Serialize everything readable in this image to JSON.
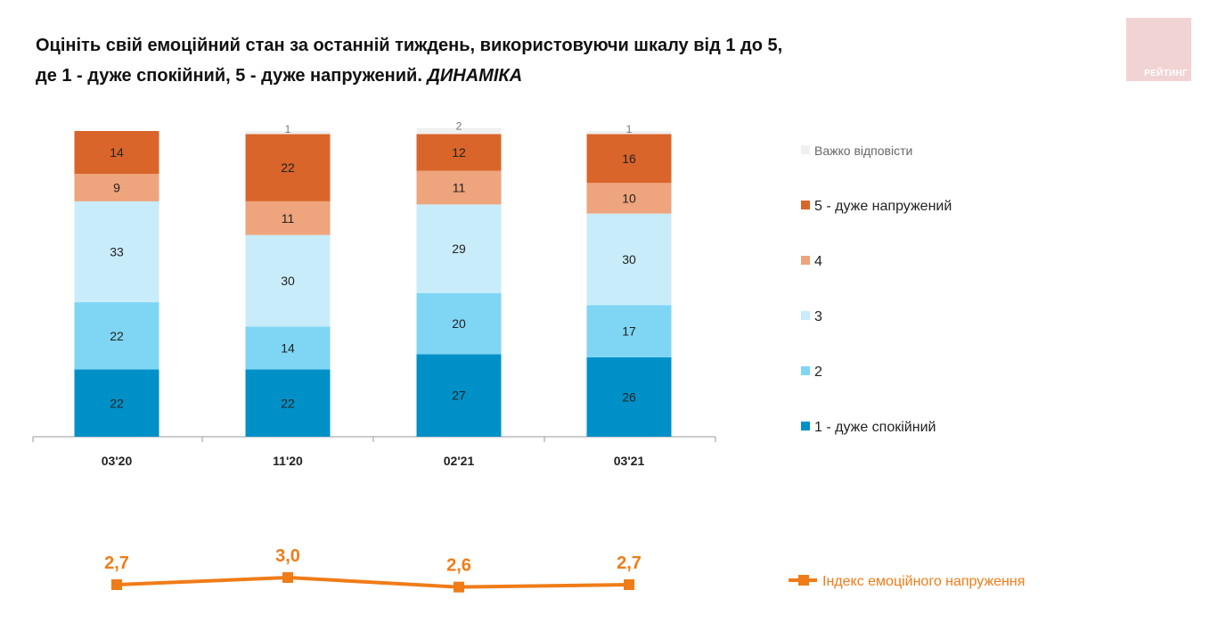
{
  "header": {
    "title_line1": "Оцініть свій емоційний стан за останній тиждень, використовуючи шкалу від 1 до 5,",
    "title_line2": "де 1 - дуже спокійний, 5 - дуже напружений.",
    "title_emphasis": "ДИНАМІКА"
  },
  "logo": {
    "text": "РЕЙТИНГ"
  },
  "chart_data": [
    {
      "type": "bar",
      "stacked": true,
      "categories": [
        "03'20",
        "11'20",
        "02'21",
        "03'21"
      ],
      "ylim": [
        0,
        100
      ],
      "grid": false,
      "legend_position": "right",
      "series": [
        {
          "name": "1 - дуже спокійний",
          "values": [
            22,
            22,
            27,
            26
          ],
          "color": "#0090c8"
        },
        {
          "name": "2",
          "values": [
            22,
            14,
            20,
            17
          ],
          "color": "#7fd6f4"
        },
        {
          "name": "3",
          "values": [
            33,
            30,
            29,
            30
          ],
          "color": "#c8ecfa"
        },
        {
          "name": "4",
          "values": [
            9,
            11,
            11,
            10
          ],
          "color": "#eea47c"
        },
        {
          "name": "5 - дуже напружений",
          "values": [
            14,
            22,
            12,
            16
          ],
          "color": "#d9652a"
        },
        {
          "name": "Важко відповісти",
          "values": [
            0,
            1,
            2,
            1
          ],
          "color": "#f0f0f0"
        }
      ]
    },
    {
      "type": "line",
      "categories": [
        "03'20",
        "11'20",
        "02'21",
        "03'21"
      ],
      "series": [
        {
          "name": "Індекс емоційного напруження",
          "values": [
            2.7,
            3.0,
            2.6,
            2.7
          ],
          "labels": [
            "2,7",
            "3,0",
            "2,6",
            "2,7"
          ],
          "color": "#f07c18"
        }
      ]
    }
  ]
}
